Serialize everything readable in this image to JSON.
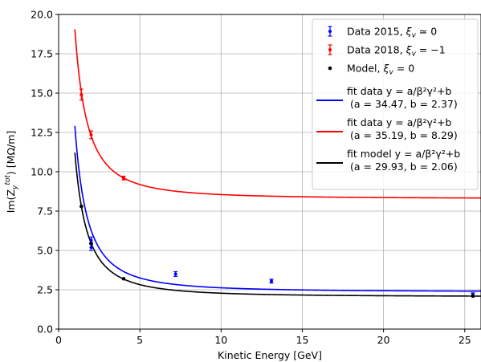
{
  "chart_data": {
    "type": "scatter",
    "xlabel": "Kinetic Energy [GeV]",
    "ylabel": "Im(Z_y^tot) [MΩ/m]",
    "ylabel_parts": {
      "base": "Im(Z",
      "sub": "y",
      "sup": "tot",
      "rest": ") [MΩ/m]"
    },
    "xlim": [
      0,
      26
    ],
    "ylim": [
      0,
      20
    ],
    "xticks": [
      0,
      5,
      10,
      15,
      20,
      25
    ],
    "yticks": [
      0.0,
      2.5,
      5.0,
      7.5,
      10.0,
      12.5,
      15.0,
      17.5,
      20.0
    ],
    "ytick_labels": [
      "0.0",
      "2.5",
      "5.0",
      "7.5",
      "10.0",
      "12.5",
      "15.0",
      "17.5",
      "20.0"
    ],
    "grid": true,
    "legend_position": "top-right",
    "series": [
      {
        "name": "Data 2015, ξv ≃ 0",
        "label_main": "Data 2015, ",
        "label_xi": "ξ",
        "label_sub": "v",
        "label_tail": " ≃ 0",
        "kind": "errorbar",
        "color": "#0000ff",
        "x": [
          2.0,
          2.0,
          7.2,
          13.1,
          25.5
        ],
        "y": [
          5.2,
          5.65,
          3.5,
          3.05,
          2.2
        ],
        "yerr": [
          0.2,
          0.2,
          0.15,
          0.12,
          0.1
        ]
      },
      {
        "name": "Data 2018, ξv = −1",
        "label_main": "Data 2018, ",
        "label_xi": "ξ",
        "label_sub": "v",
        "label_tail": " = −1",
        "kind": "errorbar",
        "color": "#ff0000",
        "x": [
          1.4,
          2.0,
          4.0
        ],
        "y": [
          14.9,
          12.35,
          9.6
        ],
        "yerr": [
          0.35,
          0.25,
          0.12
        ]
      },
      {
        "name": "Model, ξv = 0",
        "label_main": "Model, ",
        "label_xi": "ξ",
        "label_sub": "v",
        "label_tail": " = 0",
        "kind": "points",
        "color": "#000000",
        "x": [
          1.4,
          2.0,
          4.0,
          25.5
        ],
        "y": [
          7.8,
          5.45,
          3.2,
          2.1
        ]
      },
      {
        "name": "fit data y = a/β²γ²+b (a = 34.47, b = 2.37)",
        "line1": "fit data y = a/β²γ²+b",
        "line2": "(a = 34.47, b = 2.37)",
        "kind": "fit",
        "color": "#0000ff",
        "a": 34.47,
        "b": 2.37
      },
      {
        "name": "fit data y = a/β²γ²+b (a = 35.19, b = 8.29)",
        "line1": "fit data y = a/β²γ²+b",
        "line2": "(a = 35.19, b = 8.29)",
        "kind": "fit",
        "color": "#ff0000",
        "a": 35.19,
        "b": 8.29
      },
      {
        "name": "fit model y = a/β²γ²+b (a = 29.93, b = 2.06)",
        "line1": "fit model y = a/β²γ²+b",
        "line2": "(a = 29.93, b = 2.06)",
        "kind": "fit",
        "color": "#000000",
        "a": 29.93,
        "b": 2.06
      }
    ]
  }
}
